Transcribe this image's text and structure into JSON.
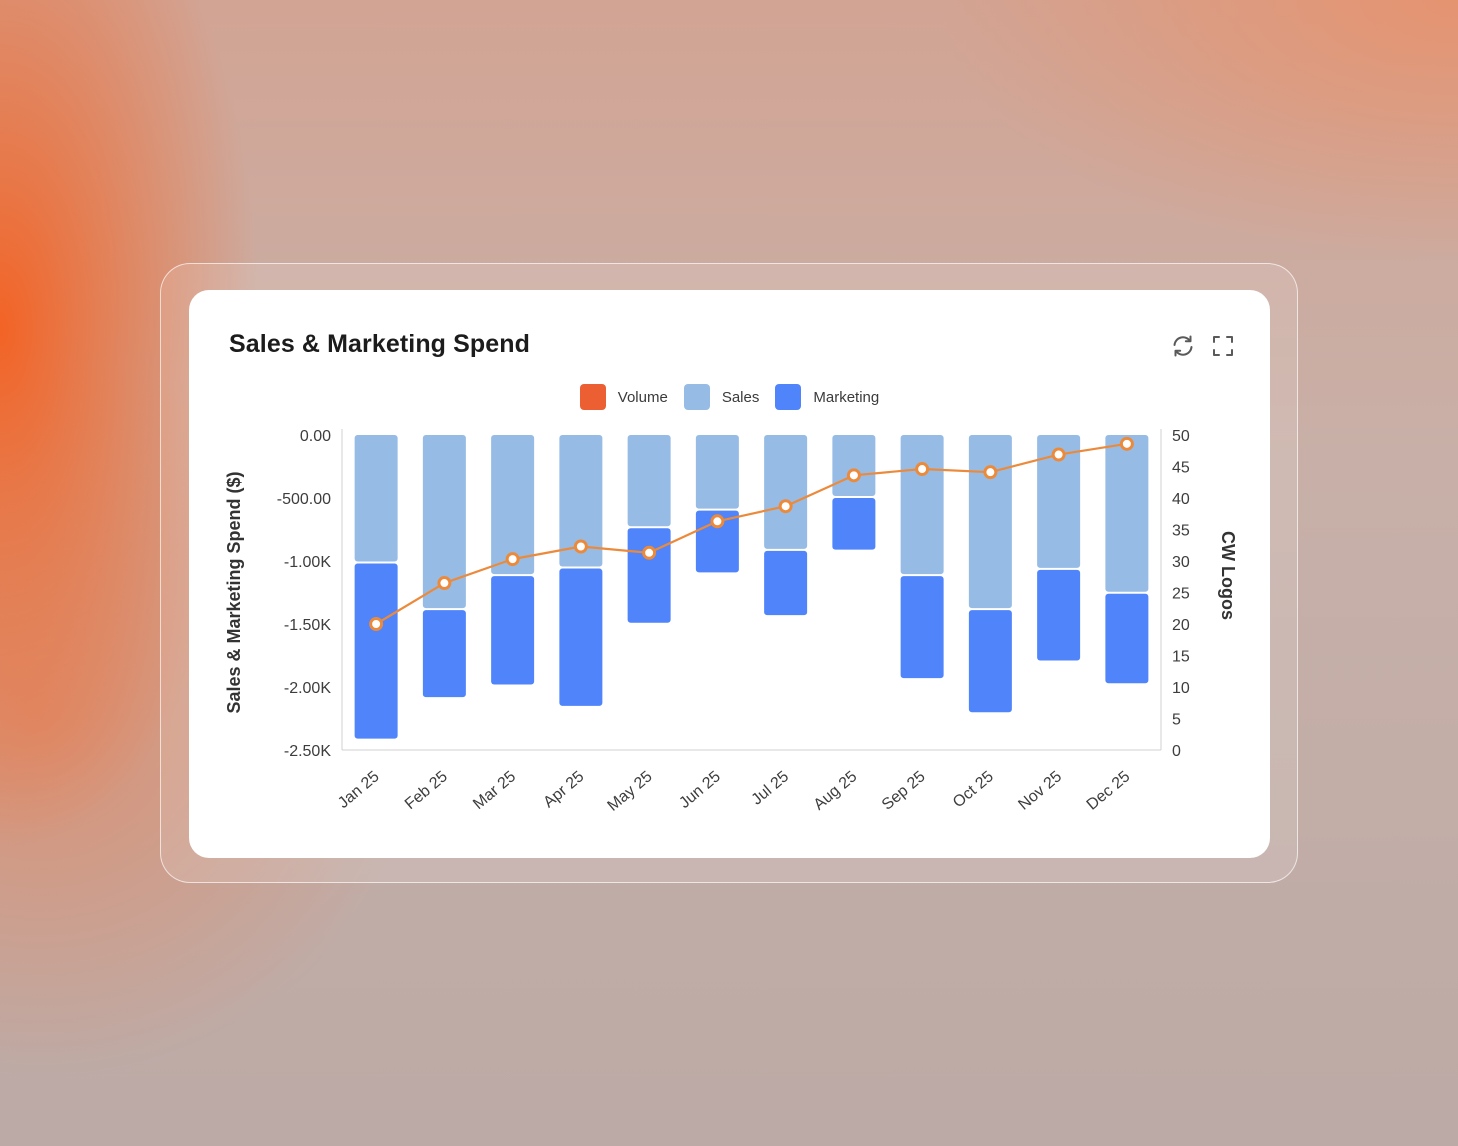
{
  "card": {
    "title": "Sales & Marketing Spend",
    "refresh_icon": "refresh-icon",
    "expand_icon": "fullscreen-icon"
  },
  "legend": [
    {
      "label": "Volume",
      "color": "#ec5f33"
    },
    {
      "label": "Sales",
      "color": "#96bce6"
    },
    {
      "label": "Marketing",
      "color": "#4f84fb"
    }
  ],
  "chart_data": {
    "type": "bar",
    "title": "Sales & Marketing Spend",
    "ylabel": "Sales & Marketing Spend ($)",
    "y2label": "CW Logos",
    "ylim": [
      -2500,
      0
    ],
    "y2lim": [
      0,
      50
    ],
    "yticks": [
      "0.00",
      "-500.00",
      "-1.00K",
      "-1.50K",
      "-2.00K",
      "-2.50K"
    ],
    "y2ticks": [
      "50",
      "45",
      "40",
      "35",
      "30",
      "25",
      "20",
      "15",
      "10",
      "5",
      "0"
    ],
    "categories": [
      "Jan 25",
      "Feb 25",
      "Mar 25",
      "Apr 25",
      "May 25",
      "Jun 25",
      "Jul 25",
      "Aug 25",
      "Sep 25",
      "Oct 25",
      "Nov 25",
      "Dec 25"
    ],
    "series": [
      {
        "name": "Sales",
        "type": "bar",
        "stack": "spend",
        "color": "#96bce6",
        "values": [
          -1020,
          -1390,
          -1120,
          -1060,
          -740,
          -600,
          -920,
          -500,
          -1120,
          -1390,
          -1070,
          -1260
        ]
      },
      {
        "name": "Marketing",
        "type": "bar",
        "stack": "spend",
        "color": "#4f84fb",
        "values": [
          -1390,
          -690,
          -860,
          -1090,
          -750,
          -490,
          -510,
          -410,
          -810,
          -810,
          -720,
          -710
        ]
      },
      {
        "name": "Volume",
        "type": "line",
        "axis": "right",
        "color": "#ec8a3c",
        "values": [
          20,
          26.5,
          30.3,
          32.3,
          31.3,
          36.3,
          38.7,
          43.6,
          44.6,
          44.1,
          46.9,
          48.6
        ]
      }
    ],
    "grid": false,
    "legend_position": "top-center"
  }
}
